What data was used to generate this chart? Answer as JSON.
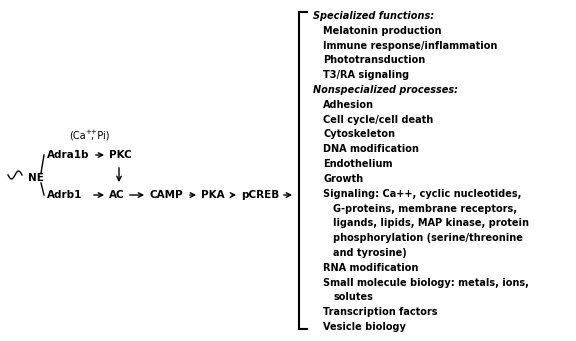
{
  "background_color": "#ffffff",
  "fig_width": 5.76,
  "fig_height": 3.41,
  "dpi": 100,
  "lines": [
    {
      "label": "Specialized functions:",
      "italic": true,
      "bold": true,
      "indent": 0
    },
    {
      "label": "Melatonin production",
      "italic": false,
      "bold": true,
      "indent": 1
    },
    {
      "label": "Immune response/inflammation",
      "italic": false,
      "bold": true,
      "indent": 1
    },
    {
      "label": "Phototransduction",
      "italic": false,
      "bold": true,
      "indent": 1
    },
    {
      "label": "T3/RA signaling",
      "italic": false,
      "bold": true,
      "indent": 1
    },
    {
      "label": "Nonspecialized processes:",
      "italic": true,
      "bold": true,
      "indent": 0
    },
    {
      "label": "Adhesion",
      "italic": false,
      "bold": true,
      "indent": 1
    },
    {
      "label": "Cell cycle/cell death",
      "italic": false,
      "bold": true,
      "indent": 1
    },
    {
      "label": "Cytoskeleton",
      "italic": false,
      "bold": true,
      "indent": 1
    },
    {
      "label": "DNA modification",
      "italic": false,
      "bold": true,
      "indent": 1
    },
    {
      "label": "Endothelium",
      "italic": false,
      "bold": true,
      "indent": 1
    },
    {
      "label": "Growth",
      "italic": false,
      "bold": true,
      "indent": 1
    },
    {
      "label": "Signaling: Ca++, cyclic nucleotides,",
      "italic": false,
      "bold": true,
      "indent": 1
    },
    {
      "label": "G-proteins, membrane receptors,",
      "italic": false,
      "bold": true,
      "indent": 2
    },
    {
      "label": "ligands, lipids, MAP kinase, protein",
      "italic": false,
      "bold": true,
      "indent": 2
    },
    {
      "label": "phosphorylation (serine/threonine",
      "italic": false,
      "bold": true,
      "indent": 2
    },
    {
      "label": "and tyrosine)",
      "italic": false,
      "bold": true,
      "indent": 2
    },
    {
      "label": "RNA modification",
      "italic": false,
      "bold": true,
      "indent": 1
    },
    {
      "label": "Small molecule biology: metals, ions,",
      "italic": false,
      "bold": true,
      "indent": 1
    },
    {
      "label": "solutes",
      "italic": false,
      "bold": true,
      "indent": 2
    },
    {
      "label": "Transcription factors",
      "italic": false,
      "bold": true,
      "indent": 1
    },
    {
      "label": "Vesicle biology",
      "italic": false,
      "bold": true,
      "indent": 1
    }
  ]
}
